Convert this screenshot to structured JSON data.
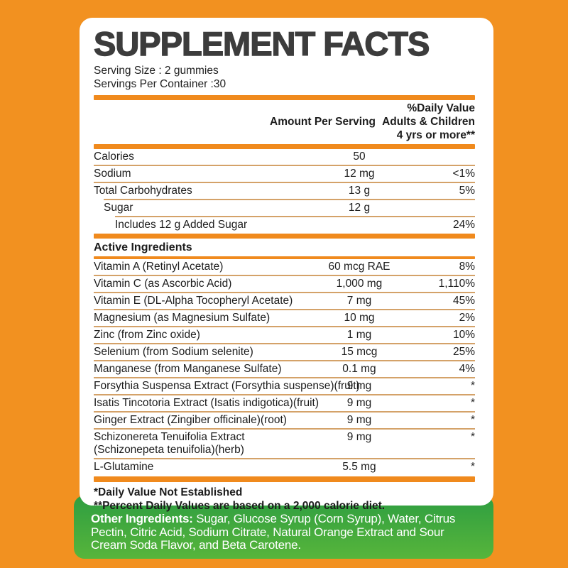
{
  "label": {
    "title": "SUPPLEMENT FACTS",
    "serving_size": "Serving Size : 2 gummies",
    "servings_per_container": "Servings Per Container :30",
    "header": {
      "amount_col": "Amount Per Serving",
      "dv_col_line1": "%Daily Value",
      "dv_col_line2": "Adults & Children",
      "dv_col_line3": "4 yrs or more**"
    },
    "top_rows": [
      {
        "name": "Calories",
        "amount": "50",
        "dv": "",
        "first": true
      },
      {
        "name": "Sodium",
        "amount": "12 mg",
        "dv": "<1%"
      },
      {
        "name": "Total Carbohydrates",
        "amount": "13 g",
        "dv": "5%"
      },
      {
        "name": "Sugar",
        "amount": "12 g",
        "dv": "",
        "indent": 1
      },
      {
        "name": "Includes 12 g Added Sugar",
        "amount": "",
        "dv": "24%",
        "indent": 2
      }
    ],
    "section_heading": "Active Ingredients",
    "active_rows": [
      {
        "name": "Vitamin A (Retinyl Acetate)",
        "amount": "60 mcg RAE",
        "dv": "8%",
        "first": true
      },
      {
        "name": "Vitamin C (as Ascorbic Acid)",
        "amount": "1,000 mg",
        "dv": "1,110%"
      },
      {
        "name": "Vitamin E (DL-Alpha Tocopheryl Acetate)",
        "amount": "7 mg",
        "dv": "45%"
      },
      {
        "name": "Magnesium (as Magnesium Sulfate)",
        "amount": "10 mg",
        "dv": "2%"
      },
      {
        "name": "Zinc (from Zinc oxide)",
        "amount": "1 mg",
        "dv": "10%"
      },
      {
        "name": "Selenium (from Sodium selenite)",
        "amount": "15 mcg",
        "dv": "25%"
      },
      {
        "name": "Manganese (from Manganese Sulfate)",
        "amount": "0.1 mg",
        "dv": "4%"
      },
      {
        "name": "Forsythia Suspensa Extract (Forsythia suspense)(fruit)",
        "amount": "9 mg",
        "dv": "*"
      },
      {
        "name": "Isatis Tincotoria Extract (Isatis indigotica)(fruit)",
        "amount": "9 mg",
        "dv": "*"
      },
      {
        "name": "Ginger Extract (Zingiber officinale)(root)",
        "amount": "9 mg",
        "dv": "*"
      },
      {
        "name": "Schizonereta Tenuifolia Extract\n(Schizonepeta tenuifolia)(herb)",
        "amount": "9 mg",
        "dv": "*"
      },
      {
        "name": "L-Glutamine",
        "amount": "5.5 mg",
        "dv": "*"
      }
    ],
    "footnotes": {
      "line1": "*Daily Value Not Established",
      "line2": "**Percent Daily Values are based on a 2,000 calorie diet."
    }
  },
  "footer": {
    "label": "Other Ingredients:",
    "text": " Sugar, Glucose Syrup (Corn Syrup), Water, Citrus Pectin, Citric Acid, Sodium Citrate, Natural Orange Extract and Sour Cream Soda Flavor, and Beta Carotene."
  },
  "colors": {
    "background_orange": "#F29120",
    "bar_orange": "#F08A1D",
    "separator_tan": "#D4A269",
    "title_gray": "#3C3C3C",
    "text_dark": "#1C1C1C",
    "footer_green_top": "#2E9E41",
    "footer_green_bottom": "#57B53B",
    "panel_white": "#FFFFFF"
  }
}
